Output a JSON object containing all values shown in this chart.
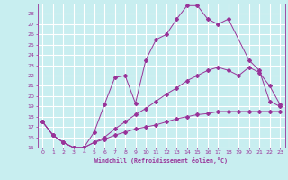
{
  "xlabel": "Windchill (Refroidissement éolien,°C)",
  "background_color": "#c8eef0",
  "grid_color": "#ffffff",
  "line_color": "#993399",
  "xlim": [
    -0.5,
    23.5
  ],
  "ylim": [
    15,
    29
  ],
  "xticks": [
    0,
    1,
    2,
    3,
    4,
    5,
    6,
    7,
    8,
    9,
    10,
    11,
    12,
    13,
    14,
    15,
    16,
    17,
    18,
    19,
    20,
    21,
    22,
    23
  ],
  "yticks": [
    15,
    16,
    17,
    18,
    19,
    20,
    21,
    22,
    23,
    24,
    25,
    26,
    27,
    28
  ],
  "curve1_x": [
    0,
    1,
    2,
    3,
    4,
    5,
    6,
    7,
    8,
    9,
    10,
    11,
    12,
    13,
    14,
    15,
    16,
    17,
    18,
    20,
    21,
    22,
    23
  ],
  "curve1_y": [
    17.5,
    16.2,
    15.5,
    15.0,
    15.0,
    16.5,
    19.2,
    21.8,
    22.0,
    19.3,
    23.5,
    25.5,
    26.0,
    27.5,
    28.8,
    28.8,
    27.5,
    27.0,
    27.5,
    23.5,
    22.5,
    19.5,
    19.0
  ],
  "curve2_x": [
    0,
    1,
    2,
    3,
    4,
    5,
    6,
    7,
    8,
    9,
    10,
    11,
    12,
    13,
    14,
    15,
    16,
    17,
    18,
    19,
    20,
    21,
    22,
    23
  ],
  "curve2_y": [
    17.5,
    16.2,
    15.5,
    15.0,
    15.0,
    15.5,
    16.0,
    16.8,
    17.5,
    18.2,
    18.8,
    19.5,
    20.2,
    20.8,
    21.5,
    22.0,
    22.5,
    22.8,
    22.5,
    22.0,
    22.8,
    22.3,
    21.0,
    19.2
  ],
  "curve3_x": [
    0,
    1,
    2,
    3,
    4,
    5,
    6,
    7,
    8,
    9,
    10,
    11,
    12,
    13,
    14,
    15,
    16,
    17,
    18,
    19,
    20,
    21,
    22,
    23
  ],
  "curve3_y": [
    17.5,
    16.2,
    15.5,
    15.0,
    15.0,
    15.5,
    15.8,
    16.2,
    16.5,
    16.8,
    17.0,
    17.2,
    17.5,
    17.8,
    18.0,
    18.2,
    18.3,
    18.5,
    18.5,
    18.5,
    18.5,
    18.5,
    18.5,
    18.5
  ]
}
